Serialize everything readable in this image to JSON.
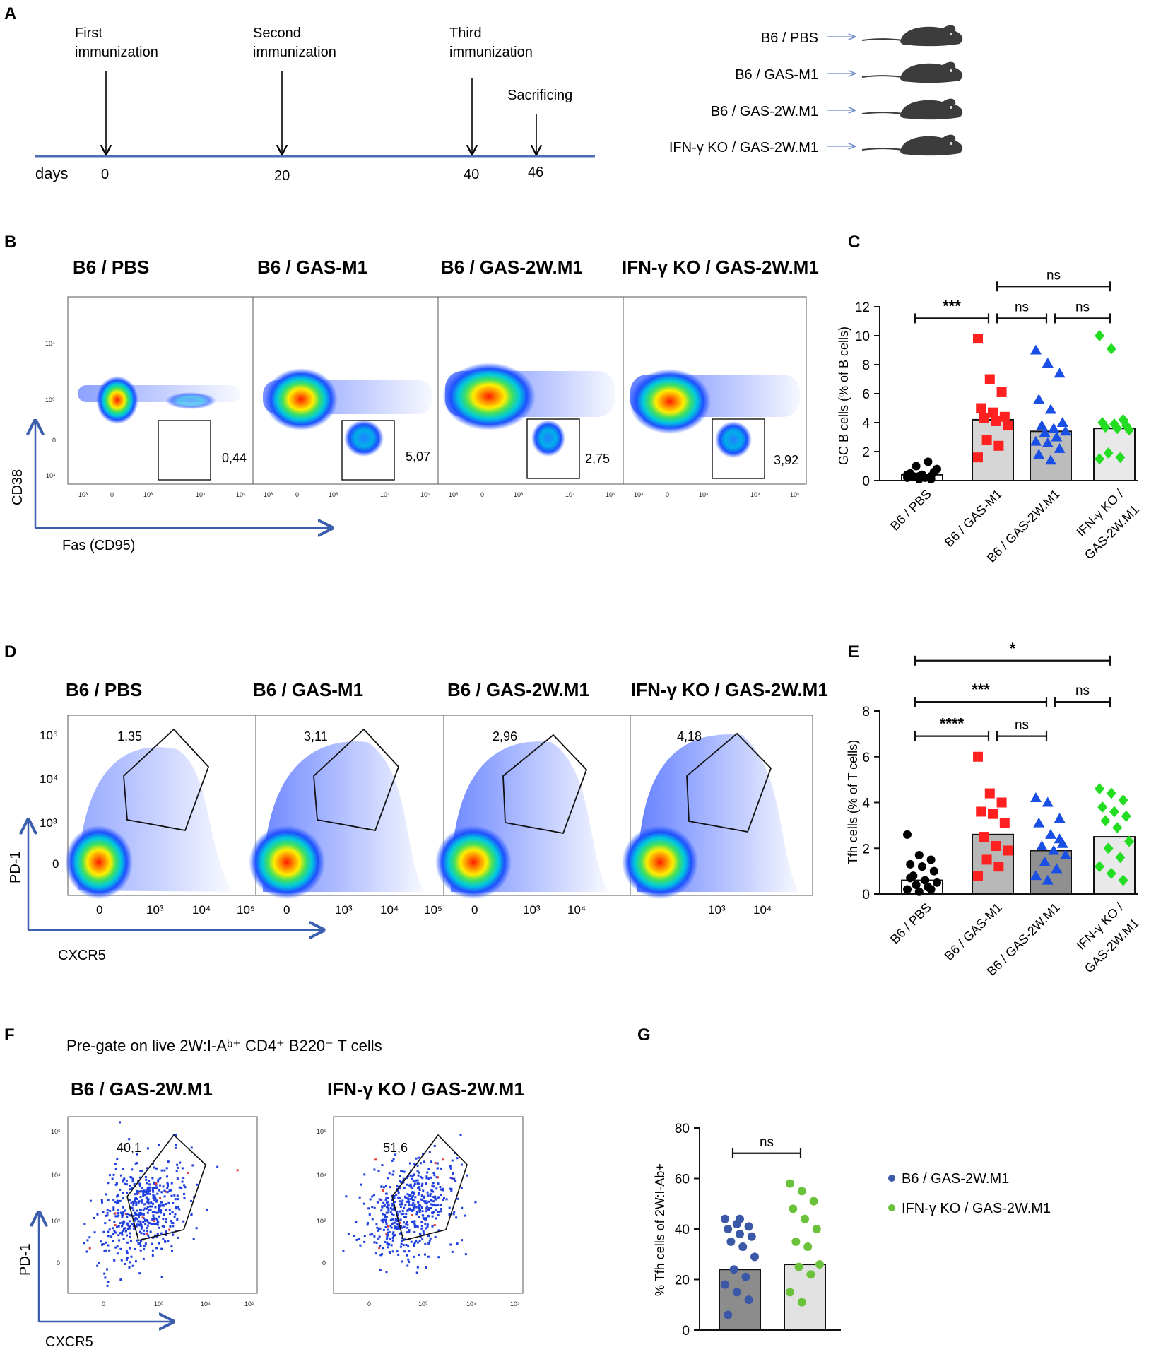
{
  "panels": {
    "A": {
      "label": "A",
      "days_label": "days",
      "events": [
        {
          "label_lines": [
            "First",
            "immunization"
          ],
          "day": "0"
        },
        {
          "label_lines": [
            "Second",
            "immunization"
          ],
          "day": "20"
        },
        {
          "label_lines": [
            "Third",
            "immunization"
          ],
          "day": "40"
        },
        {
          "label_lines": [
            "Sacrificing"
          ],
          "day": "46"
        }
      ],
      "groups": [
        "B6 / PBS",
        "B6 / GAS-M1",
        "B6 / GAS-2W.M1",
        "IFN-γ KO / GAS-2W.M1"
      ],
      "mouse_color": "#3c3c3c",
      "axis_color": "#4a6db5"
    },
    "B": {
      "label": "B",
      "titles": [
        "B6 / PBS",
        "B6 / GAS-M1",
        "B6 / GAS-2W.M1",
        "IFN-γ KO / GAS-2W.M1"
      ],
      "gate_values": [
        "0,44",
        "5,07",
        "2,75",
        "3,92"
      ],
      "y_axis": "CD38",
      "x_axis": "Fas (CD95)",
      "y_ticks": [
        "10⁴",
        "10³",
        "0",
        "-10³"
      ],
      "x_ticks": [
        "-10³",
        "0",
        "10³",
        "10⁴",
        "10⁵"
      ]
    },
    "D": {
      "label": "D",
      "titles": [
        "B6 / PBS",
        "B6 / GAS-M1",
        "B6 / GAS-2W.M1",
        "IFN-γ KO / GAS-2W.M1"
      ],
      "gate_values": [
        "1,35",
        "3,11",
        "2,96",
        "4,18"
      ],
      "y_axis": "PD-1",
      "x_axis": "CXCR5",
      "y_ticks": [
        "10⁵",
        "10⁴",
        "10³",
        "0"
      ],
      "x_ticks": [
        "0",
        "10³",
        "10⁴",
        "10⁵"
      ]
    },
    "F": {
      "label": "F",
      "subtitle": "Pre-gate on live 2W:I-Aᵇ⁺ CD4⁺ B220⁻ T cells",
      "titles": [
        "B6 / GAS-2W.M1",
        "IFN-γ KO / GAS-2W.M1"
      ],
      "gate_values": [
        "40,1",
        "51,6"
      ],
      "y_axis": "PD-1",
      "x_axis": "CXCR5",
      "y_ticks": [
        "10⁵",
        "10⁴",
        "10³",
        "0"
      ],
      "x_ticks": [
        "0",
        "10³",
        "10⁴",
        "10⁵"
      ]
    },
    "C": {
      "label": "C"
    },
    "E": {
      "label": "E"
    },
    "G": {
      "label": "G"
    }
  },
  "chart_data": [
    {
      "id": "C",
      "type": "bar",
      "ylabel": "GC B cells (% of B cells)",
      "ylim": [
        0,
        12
      ],
      "yticks": [
        "0",
        "2",
        "4",
        "6",
        "8",
        "10",
        "12"
      ],
      "categories": [
        "B6 / PBS",
        "B6 / GAS-M1",
        "B6 / GAS-2W.M1",
        "IFN-γ KO /\nGAS-2W.M1"
      ],
      "bar_values": [
        0.4,
        4.2,
        3.4,
        3.6
      ],
      "point_colors": [
        "#000000",
        "#ff2020",
        "#1a4fe6",
        "#22dd22"
      ],
      "markers": [
        "circle",
        "square",
        "triangle",
        "diamond"
      ],
      "bar_fills": [
        "#ffffff",
        "#d6d6d6",
        "#bcbcbc",
        "#e9e9e9"
      ],
      "points": [
        [
          0.2,
          0.3,
          0.1,
          0.5,
          0.4,
          0.6,
          0.3,
          0.2,
          0.8,
          1.0,
          1.3,
          0.4,
          0.1,
          0.3
        ],
        [
          9.8,
          7.0,
          6.1,
          5.0,
          4.7,
          4.4,
          4.3,
          4.1,
          3.8,
          2.8,
          2.4,
          1.6
        ],
        [
          9.0,
          8.1,
          7.4,
          5.6,
          4.9,
          4.0,
          3.8,
          3.6,
          3.4,
          3.3,
          3.0,
          2.7,
          2.6,
          2.2,
          1.8,
          1.4
        ],
        [
          10.0,
          9.1,
          4.2,
          4.0,
          3.9,
          3.8,
          3.7,
          3.6,
          3.5,
          1.9,
          1.6,
          1.5
        ]
      ],
      "significance": [
        {
          "from": 0,
          "to": 1,
          "label": "***",
          "level": 11.2
        },
        {
          "from": 1,
          "to": 2,
          "label": "ns",
          "level": 11.2
        },
        {
          "from": 2,
          "to": 3,
          "label": "ns",
          "level": 11.2
        },
        {
          "from": 1,
          "to": 3,
          "label": "ns",
          "level": 13.4
        }
      ]
    },
    {
      "id": "E",
      "type": "bar",
      "ylabel": "Tfh cells (% of T cells)",
      "ylim": [
        0,
        8
      ],
      "yticks": [
        "0",
        "2",
        "4",
        "6",
        "8"
      ],
      "categories": [
        "B6 / PBS",
        "B6 / GAS-M1",
        "B6 / GAS-2W.M1",
        "IFN-γ KO /\nGAS-2W.M1"
      ],
      "bar_values": [
        0.6,
        2.6,
        1.9,
        2.5
      ],
      "point_colors": [
        "#000000",
        "#ff2020",
        "#1a4fe6",
        "#22dd22"
      ],
      "markers": [
        "circle",
        "square",
        "triangle",
        "diamond"
      ],
      "bar_fills": [
        "#ffffff",
        "#b8b8b8",
        "#909090",
        "#e9e9e9"
      ],
      "points": [
        [
          2.6,
          1.7,
          1.5,
          1.3,
          1.2,
          1.0,
          0.8,
          0.6,
          0.5,
          0.4,
          0.3,
          0.2,
          0.1,
          0.2,
          0.7
        ],
        [
          6.0,
          4.4,
          4.0,
          3.6,
          3.5,
          3.1,
          2.5,
          2.1,
          1.9,
          1.5,
          1.2,
          0.8
        ],
        [
          4.2,
          4.0,
          3.3,
          3.1,
          2.6,
          2.2,
          2.1,
          1.9,
          1.7,
          1.4,
          1.1,
          0.8,
          0.6,
          2.4
        ],
        [
          4.6,
          4.4,
          4.1,
          3.8,
          3.6,
          3.4,
          3.2,
          2.9,
          2.3,
          2.0,
          1.6,
          1.2,
          0.9,
          0.6
        ]
      ],
      "significance": [
        {
          "from": 0,
          "to": 1,
          "label": "****",
          "level": 6.9
        },
        {
          "from": 1,
          "to": 2,
          "label": "ns",
          "level": 6.9
        },
        {
          "from": 0,
          "to": 2,
          "label": "***",
          "level": 8.4
        },
        {
          "from": 2,
          "to": 3,
          "label": "ns",
          "level": 8.4
        },
        {
          "from": 0,
          "to": 3,
          "label": "*",
          "level": 10.2
        }
      ]
    },
    {
      "id": "G",
      "type": "bar",
      "ylabel": "% Tfh cells of 2W:I-Ab+",
      "ylim": [
        0,
        80
      ],
      "yticks": [
        "0",
        "20",
        "40",
        "60",
        "80"
      ],
      "categories": [
        "B6 / GAS-2W.M1",
        "IFN-γ KO / GAS-2W.M1"
      ],
      "bar_values": [
        24,
        26
      ],
      "point_colors": [
        "#3a57a8",
        "#6ac13a"
      ],
      "markers": [
        "circle",
        "circle"
      ],
      "bar_fills": [
        "#8c8c8c",
        "#e2e2e2"
      ],
      "points": [
        [
          44,
          42,
          41,
          40,
          38,
          37,
          35,
          33,
          29,
          24,
          21,
          18,
          15,
          12,
          6,
          44
        ],
        [
          58,
          55,
          51,
          48,
          44,
          40,
          35,
          33,
          26,
          25,
          22,
          15,
          11
        ]
      ],
      "legend": [
        "B6 / GAS-2W.M1",
        "IFN-γ KO / GAS-2W.M1"
      ],
      "significance": [
        {
          "from": 0,
          "to": 1,
          "label": "ns",
          "level": 70
        }
      ]
    }
  ]
}
